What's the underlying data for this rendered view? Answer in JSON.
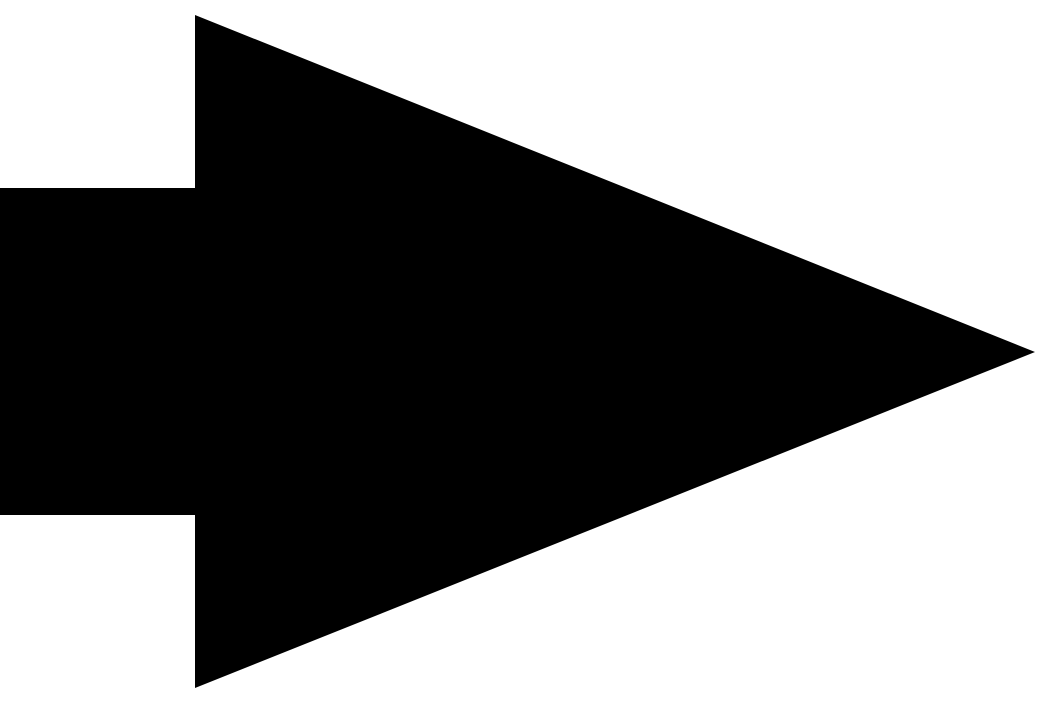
{
  "icon": {
    "name": "arrow-right-icon",
    "direction": "right",
    "color": "#000000",
    "background": "#ffffff"
  }
}
